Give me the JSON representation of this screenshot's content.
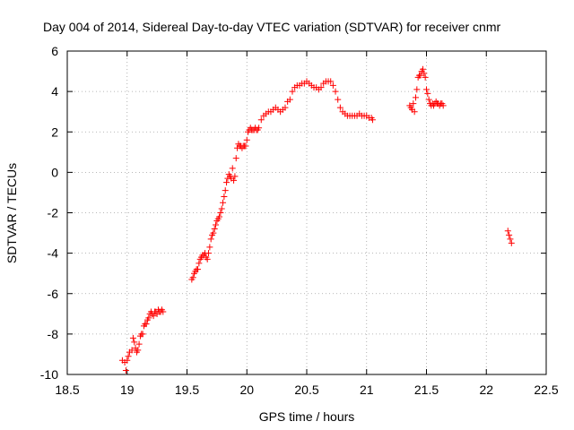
{
  "chart_data": {
    "type": "scatter",
    "title": "Day 004 of 2014, Sidereal Day-to-day VTEC variation (SDTVAR) for receiver cnmr",
    "xlabel": "GPS time / hours",
    "ylabel": "SDTVAR / TECUs",
    "xlim": [
      18.5,
      22.5
    ],
    "ylim": [
      -10,
      6
    ],
    "xticks": [
      18.5,
      19,
      19.5,
      20,
      20.5,
      21,
      21.5,
      22,
      22.5
    ],
    "xtick_labels": [
      "18.5",
      "19",
      "19.5",
      "20",
      "20.5",
      "21",
      "21.5",
      "22",
      "22.5"
    ],
    "yticks": [
      -10,
      -8,
      -6,
      -4,
      -2,
      0,
      2,
      4,
      6
    ],
    "ytick_labels": [
      "-10",
      "-8",
      "-6",
      "-4",
      "-2",
      "0",
      "2",
      "4",
      "6"
    ],
    "grid": true,
    "marker": "+",
    "marker_color": "#ff0000",
    "series": [
      {
        "name": "SDTVAR",
        "x": [
          18.96,
          18.98,
          18.99,
          19.0,
          19.01,
          19.02,
          19.04,
          19.05,
          19.06,
          19.07,
          19.08,
          19.09,
          19.1,
          19.11,
          19.12,
          19.13,
          19.14,
          19.15,
          19.16,
          19.17,
          19.18,
          19.19,
          19.2,
          19.21,
          19.22,
          19.23,
          19.24,
          19.25,
          19.26,
          19.27,
          19.28,
          19.29,
          19.3,
          19.54,
          19.55,
          19.56,
          19.57,
          19.58,
          19.59,
          19.6,
          19.61,
          19.62,
          19.63,
          19.64,
          19.65,
          19.66,
          19.67,
          19.68,
          19.69,
          19.7,
          19.71,
          19.72,
          19.73,
          19.74,
          19.75,
          19.76,
          19.77,
          19.78,
          19.79,
          19.8,
          19.81,
          19.82,
          19.83,
          19.84,
          19.85,
          19.86,
          19.87,
          19.88,
          19.89,
          19.9,
          19.91,
          19.92,
          19.93,
          19.94,
          19.95,
          19.96,
          19.97,
          19.98,
          19.99,
          20.0,
          20.01,
          20.02,
          20.03,
          20.04,
          20.05,
          20.06,
          20.07,
          20.08,
          20.09,
          20.1,
          20.12,
          20.14,
          20.16,
          20.18,
          20.2,
          20.22,
          20.24,
          20.26,
          20.28,
          20.3,
          20.32,
          20.34,
          20.36,
          20.38,
          20.4,
          20.42,
          20.44,
          20.46,
          20.48,
          20.5,
          20.52,
          20.54,
          20.56,
          20.58,
          20.6,
          20.62,
          20.64,
          20.66,
          20.68,
          20.7,
          20.72,
          20.74,
          20.76,
          20.78,
          20.8,
          20.82,
          20.84,
          20.86,
          20.88,
          20.9,
          20.92,
          20.94,
          20.96,
          20.98,
          21.0,
          21.02,
          21.04,
          21.05,
          21.36,
          21.37,
          21.38,
          21.39,
          21.4,
          21.41,
          21.42,
          21.43,
          21.44,
          21.45,
          21.46,
          21.47,
          21.48,
          21.49,
          21.5,
          21.51,
          21.52,
          21.53,
          21.54,
          21.55,
          21.56,
          21.57,
          21.58,
          21.59,
          21.6,
          21.61,
          21.62,
          21.63,
          21.64,
          22.18,
          22.19,
          22.2,
          22.21
        ],
        "y": [
          -9.3,
          -9.4,
          -9.8,
          -9.3,
          -9.1,
          -8.9,
          -8.8,
          -8.2,
          -8.4,
          -8.7,
          -8.9,
          -8.8,
          -8.5,
          -8.1,
          -8.0,
          -8.0,
          -7.6,
          -7.5,
          -7.5,
          -7.3,
          -7.2,
          -7.0,
          -6.9,
          -7.0,
          -7.1,
          -6.9,
          -6.9,
          -7.0,
          -6.8,
          -6.9,
          -6.9,
          -6.8,
          -6.9,
          -5.3,
          -5.2,
          -5.0,
          -4.9,
          -4.8,
          -4.8,
          -4.5,
          -4.3,
          -4.2,
          -4.1,
          -4.1,
          -4.0,
          -4.2,
          -4.3,
          -4.0,
          -3.7,
          -3.3,
          -3.1,
          -3.0,
          -2.8,
          -2.6,
          -2.4,
          -2.3,
          -2.2,
          -2.0,
          -1.8,
          -1.5,
          -1.2,
          -0.9,
          -0.5,
          -0.3,
          -0.1,
          -0.2,
          -0.3,
          0.2,
          -0.4,
          -0.2,
          0.7,
          1.2,
          1.4,
          1.3,
          1.3,
          1.2,
          1.3,
          1.3,
          1.3,
          1.6,
          2.0,
          2.1,
          2.2,
          2.1,
          2.1,
          2.1,
          2.2,
          2.1,
          2.1,
          2.2,
          2.6,
          2.8,
          2.9,
          3.0,
          3.0,
          3.1,
          3.2,
          3.1,
          3.0,
          3.1,
          3.2,
          3.5,
          3.6,
          4.0,
          4.2,
          4.3,
          4.3,
          4.4,
          4.4,
          4.5,
          4.4,
          4.3,
          4.2,
          4.2,
          4.1,
          4.2,
          4.4,
          4.5,
          4.5,
          4.5,
          4.3,
          4.0,
          3.6,
          3.2,
          3.0,
          2.9,
          2.8,
          2.8,
          2.8,
          2.8,
          2.8,
          2.9,
          2.8,
          2.8,
          2.8,
          2.7,
          2.7,
          2.6,
          3.3,
          3.2,
          3.1,
          3.4,
          3.0,
          3.7,
          4.1,
          4.7,
          4.8,
          4.8,
          5.0,
          5.1,
          4.9,
          4.7,
          4.1,
          3.9,
          3.6,
          3.4,
          3.3,
          3.4,
          3.3,
          3.4,
          3.5,
          3.4,
          3.4,
          3.3,
          3.4,
          3.4,
          3.3,
          -2.9,
          -3.1,
          -3.3,
          -3.5
        ]
      }
    ]
  }
}
